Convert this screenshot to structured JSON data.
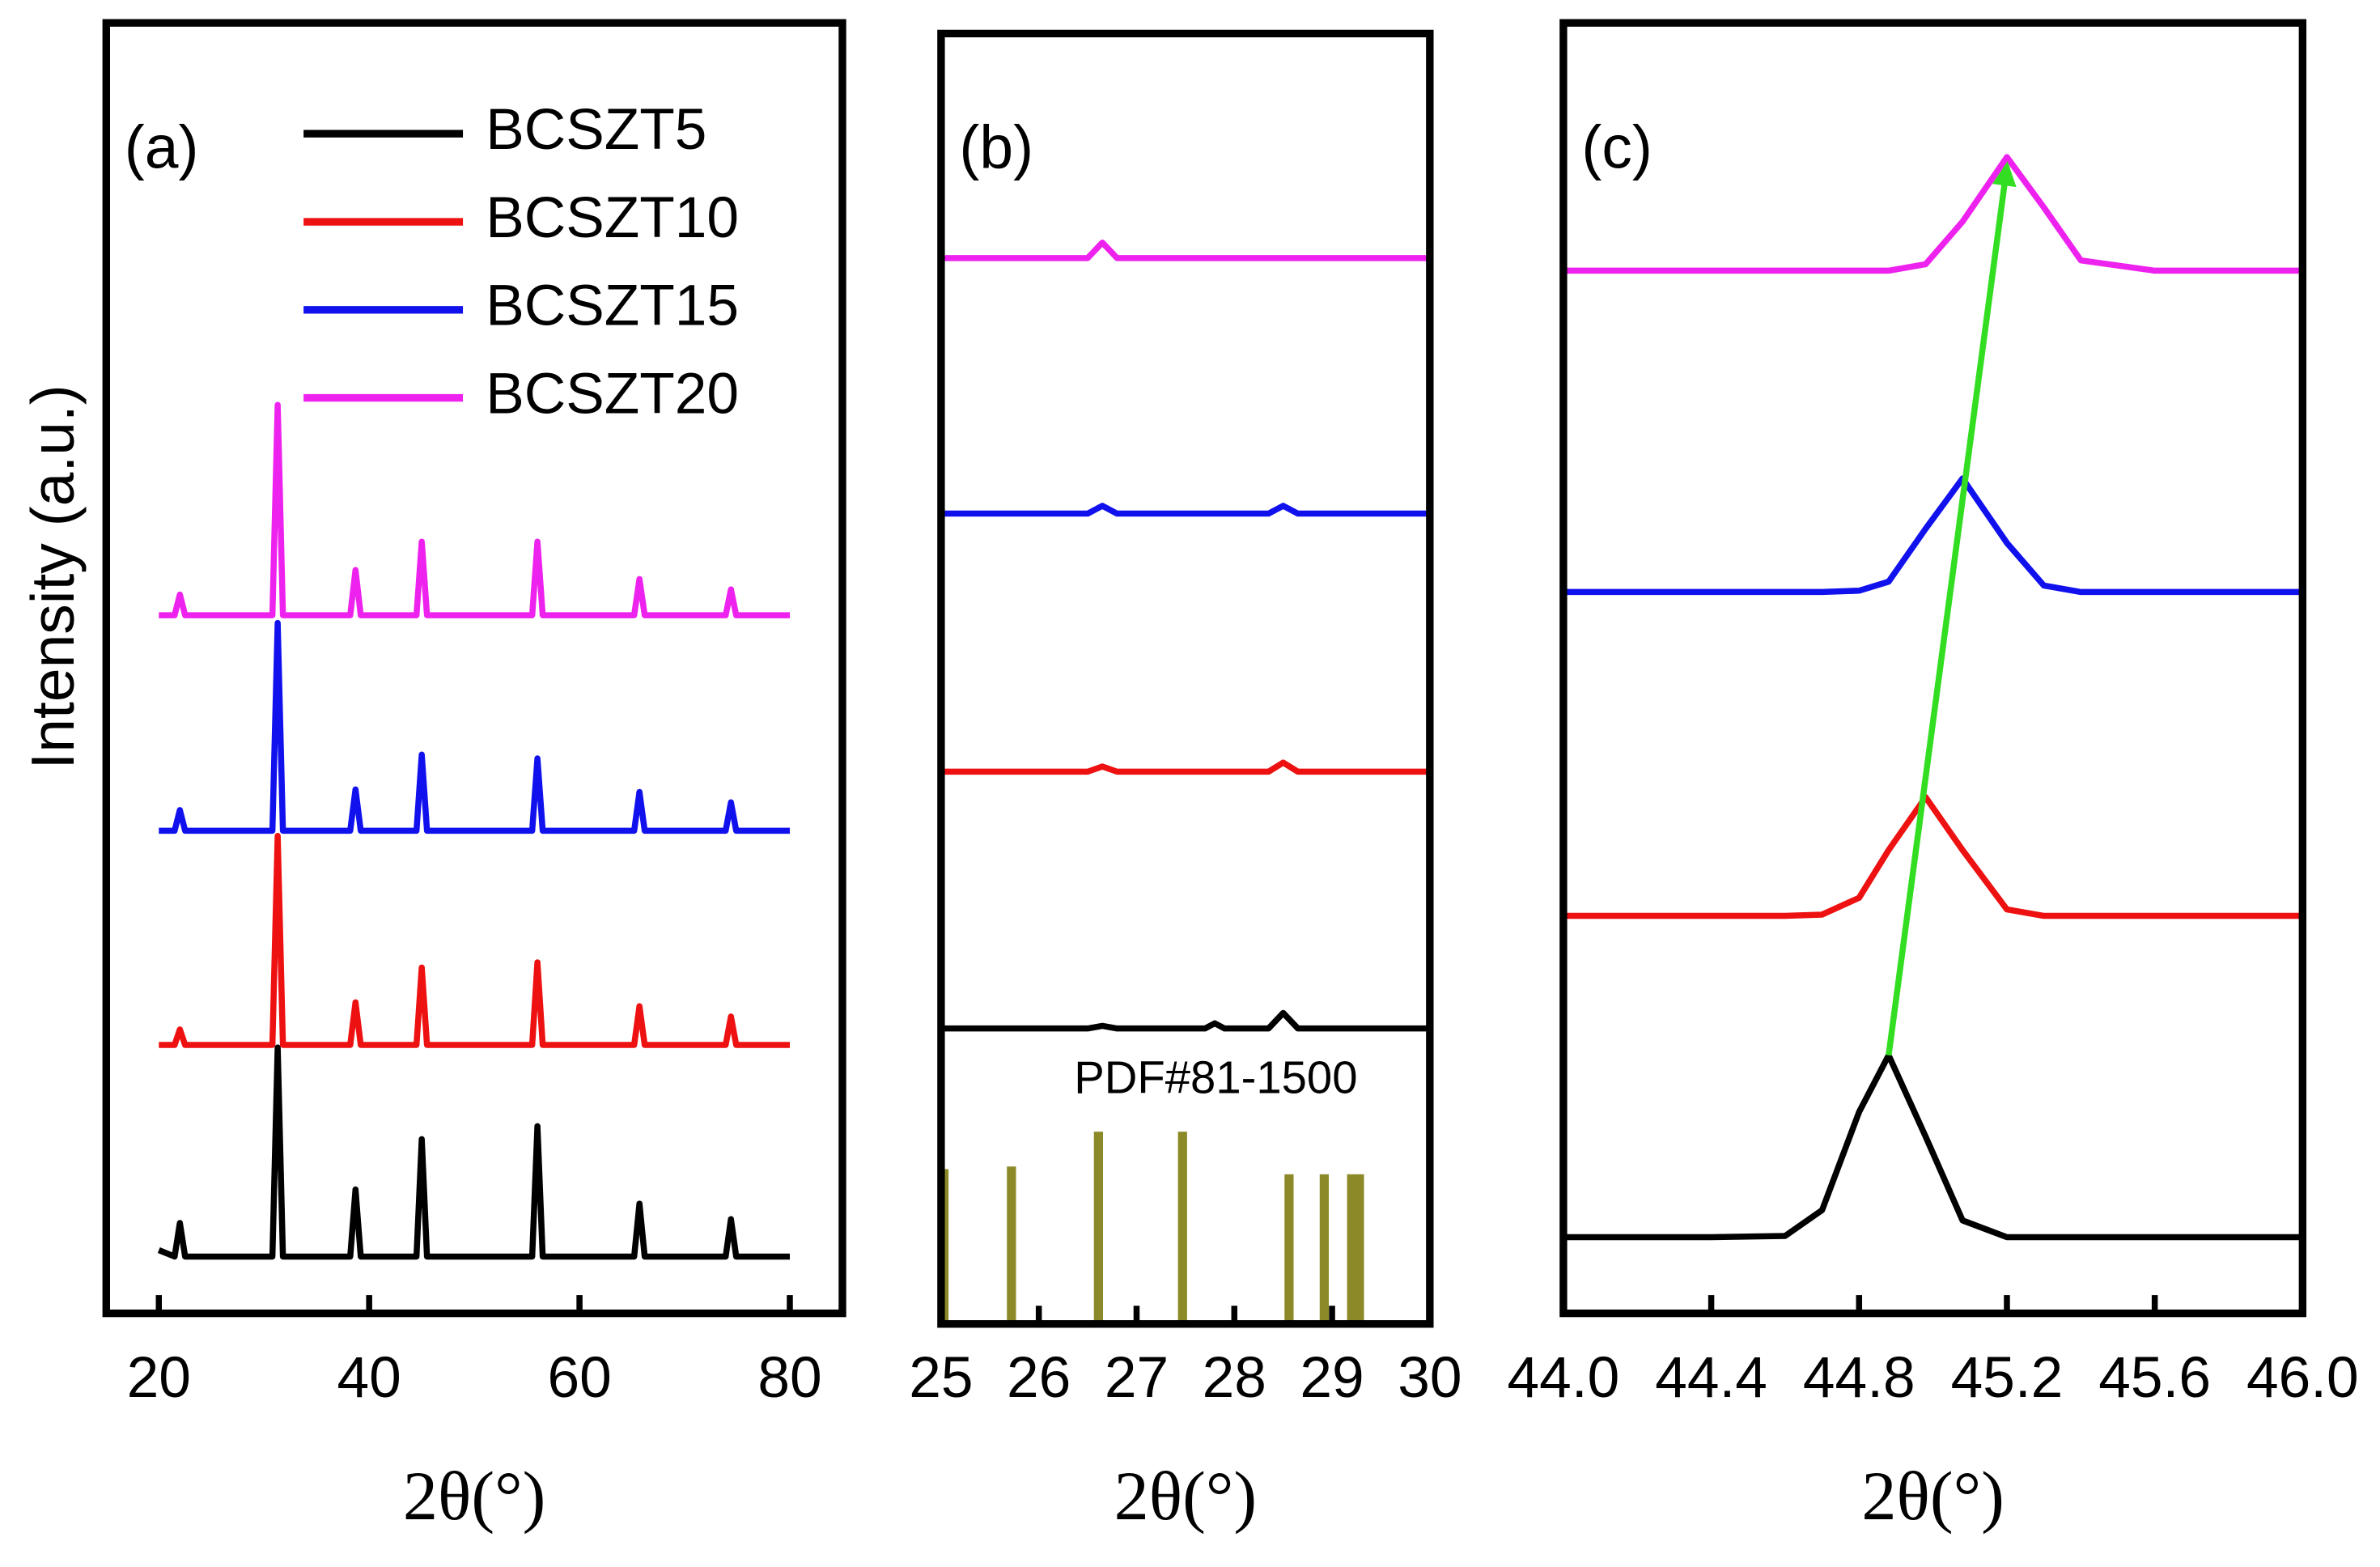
{
  "chart_data": [
    {
      "type": "line",
      "label": "(a)",
      "xlabel": "2θ(°)",
      "ylabel": "Intensity (a.u.)",
      "xlim": [
        15,
        85
      ],
      "ylim": [
        0,
        100
      ],
      "xticks": [
        20,
        40,
        60,
        80
      ],
      "legend": "upper right",
      "x": [
        20,
        21.5,
        22,
        22.5,
        30.8,
        31.3,
        31.8,
        38.2,
        38.7,
        39.2,
        44.5,
        45,
        45.5,
        55.5,
        56,
        56.5,
        65.2,
        65.7,
        66.2,
        73.9,
        74.4,
        74.9,
        80
      ],
      "series": [
        {
          "name": "BCSZT5",
          "color": "#000000",
          "values": [
            4.9,
            4.4,
            7,
            4.4,
            4.4,
            20.6,
            4.4,
            4.4,
            9.6,
            4.4,
            4.4,
            13.5,
            4.4,
            4.4,
            14.5,
            4.4,
            4.4,
            8.5,
            4.4,
            4.4,
            7.3,
            4.4,
            4.4
          ]
        },
        {
          "name": "BCSZT10",
          "color": "#ee1111",
          "values": [
            20.8,
            20.8,
            22,
            20.8,
            20.8,
            37,
            20.8,
            20.8,
            24.1,
            20.8,
            20.8,
            26.8,
            20.8,
            20.8,
            27.2,
            20.8,
            20.8,
            23.8,
            20.8,
            20.8,
            23,
            20.8,
            20.8
          ]
        },
        {
          "name": "BCSZT15",
          "color": "#1111ee",
          "values": [
            37.4,
            37.4,
            39,
            37.4,
            37.4,
            53.5,
            37.4,
            37.4,
            40.6,
            37.4,
            37.4,
            43.3,
            37.4,
            37.4,
            43,
            37.4,
            37.4,
            40.4,
            37.4,
            37.4,
            39.6,
            37.4,
            37.4
          ]
        },
        {
          "name": "BCSZT20",
          "color": "#ee22ee",
          "values": [
            54.1,
            54.1,
            55.7,
            54.1,
            54.1,
            70.4,
            54.1,
            54.1,
            57.6,
            54.1,
            54.1,
            59.8,
            54.1,
            54.1,
            59.8,
            54.1,
            54.1,
            56.9,
            54.1,
            54.1,
            56.1,
            54.1,
            54.1
          ]
        }
      ]
    },
    {
      "type": "line",
      "label": "(b)",
      "xlabel": "2θ(°)",
      "xlim": [
        25,
        30
      ],
      "ylim": [
        0,
        100
      ],
      "xticks": [
        25,
        26,
        27,
        28,
        29,
        30
      ],
      "x": [
        25,
        26.5,
        26.65,
        26.8,
        27.7,
        27.8,
        27.9,
        28.35,
        28.5,
        28.65,
        30
      ],
      "series": [
        {
          "color": "#000000",
          "values": [
            22.9,
            22.9,
            23.1,
            22.9,
            22.9,
            23.3,
            22.9,
            22.9,
            24.1,
            22.9,
            22.9
          ]
        },
        {
          "color": "#ee1111",
          "values": [
            42.8,
            42.8,
            43.2,
            42.8,
            42.8,
            42.8,
            42.8,
            42.8,
            43.5,
            42.8,
            42.8
          ]
        },
        {
          "color": "#1111ee",
          "values": [
            62.8,
            62.8,
            63.4,
            62.8,
            62.8,
            62.8,
            62.8,
            62.8,
            63.4,
            62.8,
            62.8
          ]
        },
        {
          "color": "#ee22ee",
          "values": [
            82.6,
            82.6,
            83.8,
            82.6,
            82.6,
            82.6,
            82.6,
            82.6,
            82.6,
            82.6,
            82.6
          ]
        }
      ],
      "reference": {
        "label": "PDF#81-1500",
        "color": "#8c8a28",
        "x": [
          25.03,
          25.72,
          26.61,
          27.47,
          28.56,
          28.92,
          29.2,
          29.28
        ],
        "values": [
          12,
          12.2,
          14.9,
          14.9,
          11.6,
          11.6,
          11.6,
          11.6
        ]
      }
    },
    {
      "type": "line",
      "label": "(c)",
      "xlabel": "2θ(°)",
      "arrow_color": "#33dd22",
      "xlim": [
        44,
        46
      ],
      "ylim": [
        0,
        100
      ],
      "xticks": [
        {
          "value": 44,
          "label": "44.0"
        },
        44.4,
        44.8,
        45.2,
        45.6,
        {
          "value": 46,
          "label": "46.0"
        }
      ],
      "x": [
        44,
        44.4,
        44.6,
        44.7,
        44.8,
        44.88,
        44.98,
        45.08,
        45.2,
        45.3,
        45.4,
        45.6,
        46
      ],
      "series": [
        {
          "color": "#000000",
          "values": [
            5.9,
            5.9,
            6,
            8,
            15.6,
            20,
            13.7,
            7.2,
            5.9,
            5.9,
            5.9,
            5.9,
            5.9
          ]
        },
        {
          "color": "#ee1111",
          "values": [
            30.8,
            30.8,
            30.8,
            30.9,
            32.2,
            35.9,
            40,
            35.9,
            31.3,
            30.8,
            30.8,
            30.8,
            30.8
          ]
        },
        {
          "color": "#1111ee",
          "values": [
            55.9,
            55.9,
            55.9,
            55.9,
            56,
            56.7,
            60.8,
            64.7,
            59.7,
            56.4,
            55.9,
            55.9,
            55.9
          ]
        },
        {
          "color": "#ee22ee",
          "values": [
            80.8,
            80.8,
            80.8,
            80.8,
            80.8,
            80.8,
            81.3,
            84.6,
            89.6,
            85.7,
            81.6,
            80.8,
            80.8
          ]
        }
      ]
    }
  ]
}
